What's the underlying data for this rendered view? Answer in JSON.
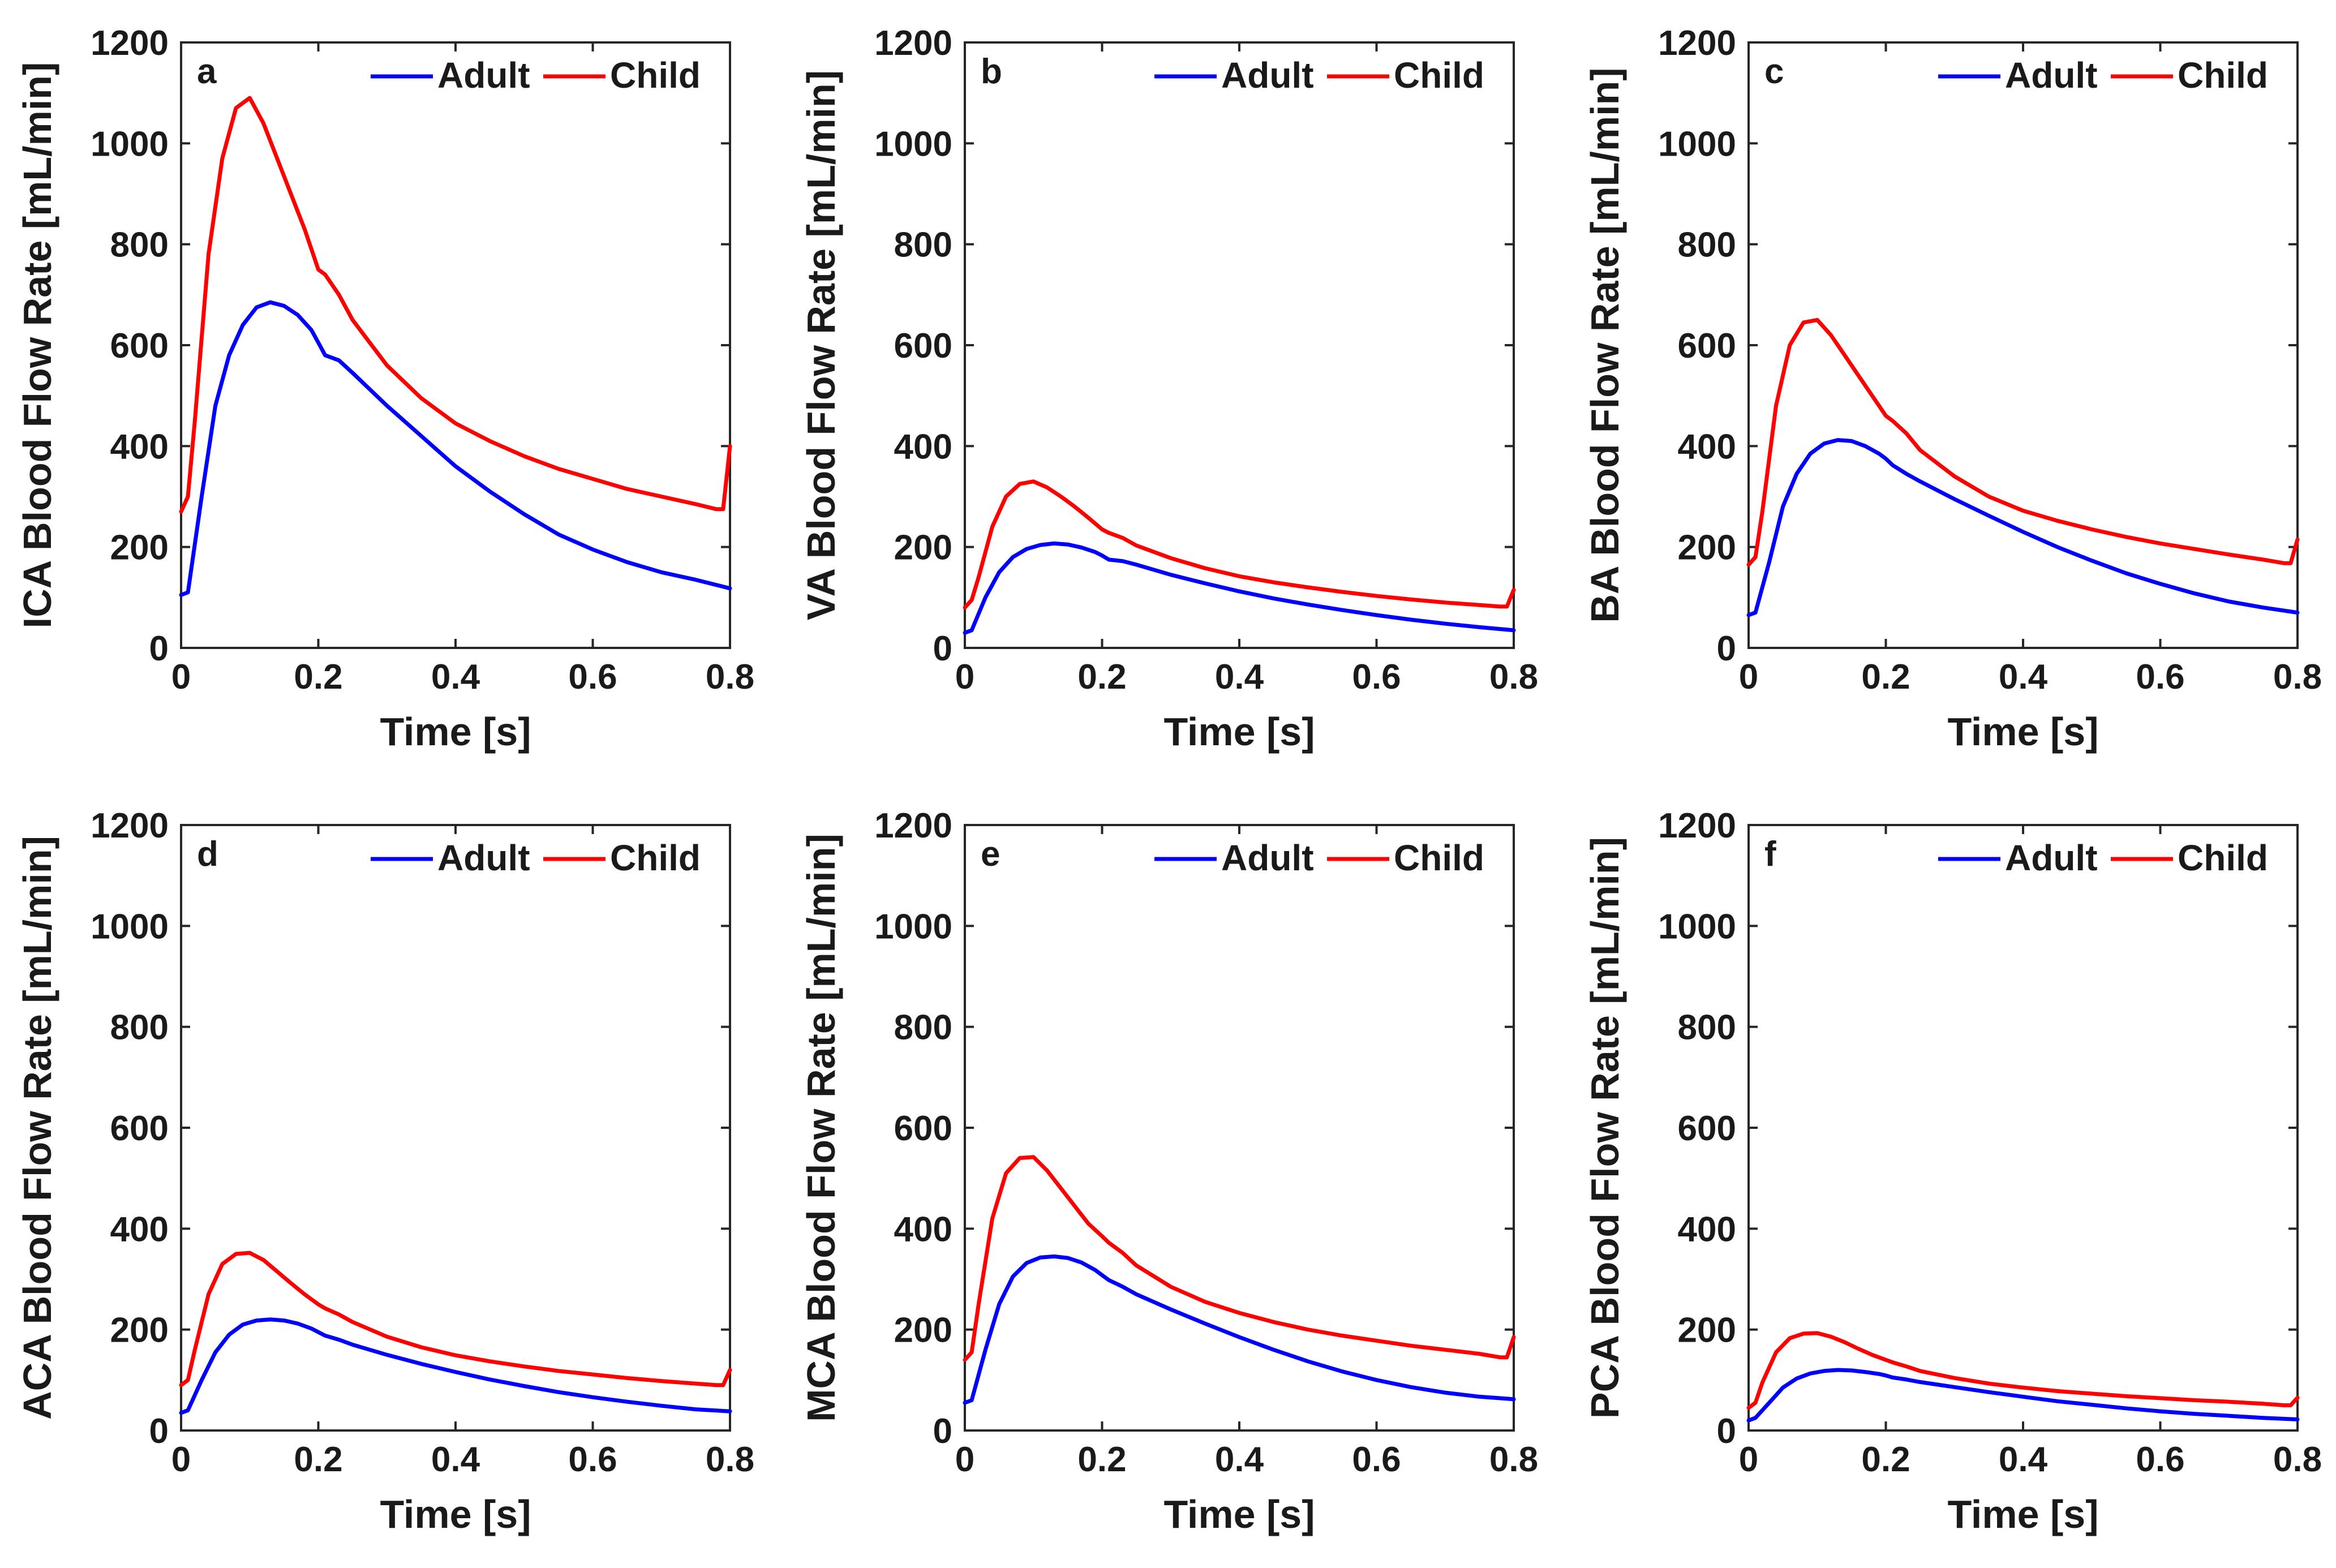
{
  "figure": {
    "legend_entries": [
      "Adult",
      "Child"
    ],
    "colors": {
      "Adult": "#0000ff",
      "Child": "#ff0000",
      "axis": "#262626"
    }
  },
  "chart_data": [
    {
      "type": "line",
      "panel": "a",
      "xlabel": "Time [s]",
      "ylabel": "ICA Blood Flow Rate [mL/min]",
      "xlim": [
        0,
        0.8
      ],
      "ylim": [
        0,
        1200
      ],
      "xticks": [
        0,
        0.2,
        0.4,
        0.6,
        0.8
      ],
      "xtick_labels": [
        "0",
        "0.2",
        "0.4",
        "0.6",
        "0.8"
      ],
      "yticks": [
        0,
        200,
        400,
        600,
        800,
        1000,
        1200
      ],
      "ytick_labels": [
        "0",
        "200",
        "400",
        "600",
        "800",
        "1000",
        "1200"
      ],
      "series": [
        {
          "name": "Adult",
          "color": "#0000ff",
          "x": [
            0,
            0.01,
            0.03,
            0.05,
            0.07,
            0.09,
            0.11,
            0.13,
            0.15,
            0.17,
            0.19,
            0.2,
            0.21,
            0.23,
            0.25,
            0.3,
            0.35,
            0.4,
            0.45,
            0.5,
            0.55,
            0.6,
            0.65,
            0.7,
            0.75,
            0.8
          ],
          "y": [
            105,
            110,
            300,
            480,
            580,
            640,
            675,
            685,
            678,
            660,
            630,
            605,
            580,
            570,
            545,
            480,
            420,
            360,
            310,
            265,
            225,
            195,
            170,
            150,
            135,
            118
          ]
        },
        {
          "name": "Child",
          "color": "#ff0000",
          "x": [
            0,
            0.01,
            0.02,
            0.04,
            0.06,
            0.08,
            0.1,
            0.12,
            0.14,
            0.16,
            0.18,
            0.2,
            0.21,
            0.23,
            0.25,
            0.3,
            0.35,
            0.4,
            0.45,
            0.5,
            0.55,
            0.6,
            0.65,
            0.7,
            0.75,
            0.78,
            0.79,
            0.8
          ],
          "y": [
            270,
            300,
            450,
            780,
            970,
            1070,
            1090,
            1040,
            970,
            900,
            830,
            750,
            740,
            700,
            650,
            560,
            495,
            445,
            410,
            380,
            355,
            335,
            315,
            300,
            285,
            275,
            275,
            400
          ]
        }
      ]
    },
    {
      "type": "line",
      "panel": "b",
      "xlabel": "Time [s]",
      "ylabel": "VA Blood Flow Rate [mL/min]",
      "xlim": [
        0,
        0.8
      ],
      "ylim": [
        0,
        1200
      ],
      "xticks": [
        0,
        0.2,
        0.4,
        0.6,
        0.8
      ],
      "xtick_labels": [
        "0",
        "0.2",
        "0.4",
        "0.6",
        "0.8"
      ],
      "yticks": [
        0,
        200,
        400,
        600,
        800,
        1000,
        1200
      ],
      "ytick_labels": [
        "0",
        "200",
        "400",
        "600",
        "800",
        "1000",
        "1200"
      ],
      "series": [
        {
          "name": "Adult",
          "color": "#0000ff",
          "x": [
            0,
            0.01,
            0.03,
            0.05,
            0.07,
            0.09,
            0.11,
            0.13,
            0.15,
            0.17,
            0.19,
            0.2,
            0.21,
            0.23,
            0.25,
            0.3,
            0.35,
            0.4,
            0.45,
            0.5,
            0.55,
            0.6,
            0.65,
            0.7,
            0.75,
            0.8
          ],
          "y": [
            30,
            35,
            100,
            150,
            180,
            196,
            204,
            207,
            205,
            199,
            190,
            183,
            175,
            172,
            165,
            145,
            128,
            112,
            98,
            86,
            75,
            65,
            56,
            48,
            41,
            35
          ]
        },
        {
          "name": "Child",
          "color": "#ff0000",
          "x": [
            0,
            0.01,
            0.02,
            0.04,
            0.06,
            0.08,
            0.1,
            0.12,
            0.14,
            0.16,
            0.18,
            0.2,
            0.21,
            0.23,
            0.25,
            0.3,
            0.35,
            0.4,
            0.45,
            0.5,
            0.55,
            0.6,
            0.65,
            0.7,
            0.75,
            0.78,
            0.79,
            0.8
          ],
          "y": [
            80,
            95,
            140,
            240,
            300,
            325,
            330,
            318,
            300,
            280,
            258,
            235,
            228,
            218,
            203,
            178,
            158,
            142,
            130,
            120,
            111,
            103,
            96,
            90,
            85,
            82,
            82,
            115
          ]
        }
      ]
    },
    {
      "type": "line",
      "panel": "c",
      "xlabel": "Time [s]",
      "ylabel": "BA Blood Flow Rate [mL/min]",
      "xlim": [
        0,
        0.8
      ],
      "ylim": [
        0,
        1200
      ],
      "xticks": [
        0,
        0.2,
        0.4,
        0.6,
        0.8
      ],
      "xtick_labels": [
        "0",
        "0.2",
        "0.4",
        "0.6",
        "0.8"
      ],
      "yticks": [
        0,
        200,
        400,
        600,
        800,
        1000,
        1200
      ],
      "ytick_labels": [
        "0",
        "200",
        "400",
        "600",
        "800",
        "1000",
        "1200"
      ],
      "series": [
        {
          "name": "Adult",
          "color": "#0000ff",
          "x": [
            0,
            0.01,
            0.03,
            0.05,
            0.07,
            0.09,
            0.11,
            0.13,
            0.15,
            0.17,
            0.19,
            0.2,
            0.21,
            0.23,
            0.25,
            0.3,
            0.35,
            0.4,
            0.45,
            0.5,
            0.55,
            0.6,
            0.65,
            0.7,
            0.75,
            0.8
          ],
          "y": [
            65,
            70,
            170,
            280,
            345,
            385,
            405,
            412,
            410,
            400,
            385,
            375,
            362,
            345,
            330,
            295,
            262,
            230,
            200,
            173,
            148,
            127,
            108,
            92,
            80,
            70
          ]
        },
        {
          "name": "Child",
          "color": "#ff0000",
          "x": [
            0,
            0.01,
            0.02,
            0.04,
            0.06,
            0.08,
            0.1,
            0.12,
            0.14,
            0.16,
            0.18,
            0.2,
            0.21,
            0.23,
            0.25,
            0.3,
            0.35,
            0.4,
            0.45,
            0.5,
            0.55,
            0.6,
            0.65,
            0.7,
            0.75,
            0.78,
            0.79,
            0.8
          ],
          "y": [
            165,
            180,
            270,
            480,
            600,
            645,
            650,
            620,
            580,
            540,
            500,
            460,
            450,
            425,
            392,
            340,
            300,
            272,
            252,
            235,
            220,
            207,
            196,
            185,
            175,
            168,
            168,
            215
          ]
        }
      ]
    },
    {
      "type": "line",
      "panel": "d",
      "xlabel": "Time [s]",
      "ylabel": "ACA Blood Flow Rate [mL/min]",
      "xlim": [
        0,
        0.8
      ],
      "ylim": [
        0,
        1200
      ],
      "xticks": [
        0,
        0.2,
        0.4,
        0.6,
        0.8
      ],
      "xtick_labels": [
        "0",
        "0.2",
        "0.4",
        "0.6",
        "0.8"
      ],
      "yticks": [
        0,
        200,
        400,
        600,
        800,
        1000,
        1200
      ],
      "ytick_labels": [
        "0",
        "200",
        "400",
        "600",
        "800",
        "1000",
        "1200"
      ],
      "series": [
        {
          "name": "Adult",
          "color": "#0000ff",
          "x": [
            0,
            0.01,
            0.03,
            0.05,
            0.07,
            0.09,
            0.11,
            0.13,
            0.15,
            0.17,
            0.19,
            0.2,
            0.21,
            0.23,
            0.25,
            0.3,
            0.35,
            0.4,
            0.45,
            0.5,
            0.55,
            0.6,
            0.65,
            0.7,
            0.75,
            0.8
          ],
          "y": [
            35,
            40,
            100,
            155,
            190,
            210,
            218,
            220,
            218,
            212,
            202,
            195,
            188,
            180,
            170,
            150,
            132,
            116,
            101,
            88,
            76,
            66,
            57,
            49,
            42,
            38
          ]
        },
        {
          "name": "Child",
          "color": "#ff0000",
          "x": [
            0,
            0.01,
            0.02,
            0.04,
            0.06,
            0.08,
            0.1,
            0.12,
            0.14,
            0.16,
            0.18,
            0.2,
            0.21,
            0.23,
            0.25,
            0.3,
            0.35,
            0.4,
            0.45,
            0.5,
            0.55,
            0.6,
            0.65,
            0.7,
            0.75,
            0.78,
            0.79,
            0.8
          ],
          "y": [
            90,
            100,
            160,
            270,
            330,
            350,
            352,
            338,
            315,
            292,
            270,
            250,
            242,
            230,
            215,
            186,
            165,
            149,
            137,
            127,
            118,
            111,
            104,
            98,
            93,
            90,
            90,
            120
          ]
        }
      ]
    },
    {
      "type": "line",
      "panel": "e",
      "xlabel": "Time [s]",
      "ylabel": "MCA Blood Flow Rate [mL/min]",
      "xlim": [
        0,
        0.8
      ],
      "ylim": [
        0,
        1200
      ],
      "xticks": [
        0,
        0.2,
        0.4,
        0.6,
        0.8
      ],
      "xtick_labels": [
        "0",
        "0.2",
        "0.4",
        "0.6",
        "0.8"
      ],
      "yticks": [
        0,
        200,
        400,
        600,
        800,
        1000,
        1200
      ],
      "ytick_labels": [
        "0",
        "200",
        "400",
        "600",
        "800",
        "1000",
        "1200"
      ],
      "series": [
        {
          "name": "Adult",
          "color": "#0000ff",
          "x": [
            0,
            0.01,
            0.03,
            0.05,
            0.07,
            0.09,
            0.11,
            0.13,
            0.15,
            0.17,
            0.19,
            0.2,
            0.21,
            0.23,
            0.25,
            0.3,
            0.35,
            0.4,
            0.45,
            0.5,
            0.55,
            0.6,
            0.65,
            0.7,
            0.75,
            0.8
          ],
          "y": [
            55,
            60,
            160,
            250,
            305,
            332,
            343,
            345,
            342,
            333,
            318,
            308,
            298,
            285,
            270,
            240,
            212,
            185,
            160,
            137,
            117,
            100,
            86,
            75,
            67,
            62
          ]
        },
        {
          "name": "Child",
          "color": "#ff0000",
          "x": [
            0,
            0.01,
            0.02,
            0.04,
            0.06,
            0.08,
            0.1,
            0.12,
            0.14,
            0.16,
            0.18,
            0.2,
            0.21,
            0.23,
            0.25,
            0.3,
            0.35,
            0.4,
            0.45,
            0.5,
            0.55,
            0.6,
            0.65,
            0.7,
            0.75,
            0.78,
            0.79,
            0.8
          ],
          "y": [
            140,
            155,
            250,
            420,
            510,
            540,
            542,
            515,
            480,
            445,
            410,
            385,
            372,
            352,
            327,
            285,
            255,
            233,
            215,
            200,
            188,
            178,
            168,
            160,
            152,
            145,
            145,
            185
          ]
        }
      ]
    },
    {
      "type": "line",
      "panel": "f",
      "xlabel": "Time [s]",
      "ylabel": "PCA Blood Flow Rate [mL/min]",
      "xlim": [
        0,
        0.8
      ],
      "ylim": [
        0,
        1200
      ],
      "xticks": [
        0,
        0.2,
        0.4,
        0.6,
        0.8
      ],
      "xtick_labels": [
        "0",
        "0.2",
        "0.4",
        "0.6",
        "0.8"
      ],
      "yticks": [
        0,
        200,
        400,
        600,
        800,
        1000,
        1200
      ],
      "ytick_labels": [
        "0",
        "200",
        "400",
        "600",
        "800",
        "1000",
        "1200"
      ],
      "series": [
        {
          "name": "Adult",
          "color": "#0000ff",
          "x": [
            0,
            0.01,
            0.03,
            0.05,
            0.07,
            0.09,
            0.11,
            0.13,
            0.15,
            0.17,
            0.19,
            0.2,
            0.21,
            0.23,
            0.25,
            0.3,
            0.35,
            0.4,
            0.45,
            0.5,
            0.55,
            0.6,
            0.65,
            0.7,
            0.75,
            0.8
          ],
          "y": [
            20,
            25,
            55,
            85,
            103,
            113,
            118,
            120,
            119,
            116,
            112,
            109,
            105,
            101,
            96,
            86,
            76,
            67,
            58,
            51,
            44,
            38,
            33,
            29,
            25,
            22
          ]
        },
        {
          "name": "Child",
          "color": "#ff0000",
          "x": [
            0,
            0.01,
            0.02,
            0.04,
            0.06,
            0.08,
            0.1,
            0.12,
            0.14,
            0.16,
            0.18,
            0.2,
            0.21,
            0.23,
            0.25,
            0.3,
            0.35,
            0.4,
            0.45,
            0.5,
            0.55,
            0.6,
            0.65,
            0.7,
            0.75,
            0.78,
            0.79,
            0.8
          ],
          "y": [
            45,
            55,
            95,
            155,
            183,
            192,
            193,
            186,
            175,
            162,
            150,
            140,
            135,
            127,
            118,
            104,
            93,
            85,
            78,
            73,
            68,
            64,
            60,
            57,
            53,
            50,
            50,
            65
          ]
        }
      ]
    }
  ]
}
